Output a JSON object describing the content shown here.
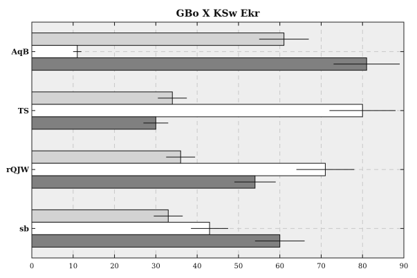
{
  "chart_data": {
    "type": "bar",
    "orientation": "horizontal",
    "title": "GBo X KSw Ekr",
    "xlabel": "",
    "ylabel": "",
    "categories": [
      "AqB",
      "TS",
      "rQJW",
      "sb"
    ],
    "xlim": [
      0,
      90
    ],
    "xticks": [
      0,
      10,
      20,
      30,
      40,
      50,
      60,
      70,
      80,
      90
    ],
    "grid": true,
    "series": [
      {
        "color": "#d3d3d3",
        "values": [
          61,
          34,
          36,
          33
        ],
        "errors": [
          6,
          3.5,
          3.5,
          3.5
        ]
      },
      {
        "color": "#ffffff",
        "values": [
          11,
          80,
          71,
          43
        ],
        "errors": [
          1,
          8,
          7,
          4.5
        ]
      },
      {
        "color": "#808080",
        "values": [
          81,
          30,
          54,
          60
        ],
        "errors": [
          8,
          3,
          5,
          6
        ]
      }
    ]
  }
}
